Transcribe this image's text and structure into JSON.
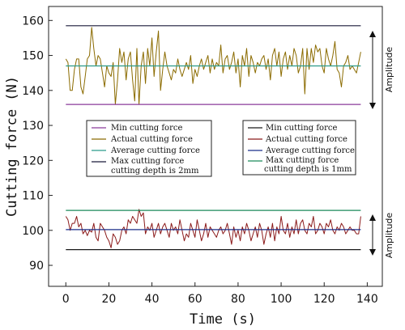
{
  "chart_data": {
    "type": "line",
    "xlabel": "Time (s)",
    "ylabel": "Cutting force (N)",
    "xlim": [
      -8,
      147
    ],
    "ylim": [
      84,
      164
    ],
    "xticks": [
      0,
      20,
      40,
      60,
      80,
      100,
      120,
      140
    ],
    "yticks": [
      90,
      100,
      110,
      120,
      130,
      140,
      150,
      160
    ],
    "amplitude_label": "Amplitude",
    "colors": {
      "actual_2mm": "#8b6b00",
      "actual_1mm": "#8b1a1a",
      "average_2mm": "#2a9a8a",
      "average_1mm": "#1a2e8a",
      "max_2mm": "#1a1a3a",
      "max_1mm": "#1a8a5a",
      "min_2mm": "#8a3a9a",
      "min_1mm": "#1a1a1a"
    },
    "legend_2mm": {
      "min": "Min cutting force",
      "actual": "Actual cutting force",
      "average": "Average cutting force",
      "max": "Max cutting force",
      "note": "cutting depth is 2mm"
    },
    "legend_1mm": {
      "min": "Min cutting force",
      "actual": "Actual cutting force",
      "average": "Average cutting force",
      "max": "Max cutting force",
      "note": "cutting depth is 1mm"
    },
    "series": [
      {
        "key": "actual_2mm",
        "x": [
          0,
          1,
          2,
          3,
          4,
          5,
          6,
          7,
          8,
          9,
          10,
          11,
          12,
          13,
          14,
          15,
          16,
          17,
          18,
          19,
          20,
          21,
          22,
          23,
          24,
          25,
          26,
          27,
          28,
          29,
          30,
          31,
          32,
          33,
          34,
          35,
          36,
          37,
          38,
          39,
          40,
          41,
          42,
          43,
          44,
          45,
          46,
          47,
          48,
          49,
          50,
          51,
          52,
          53,
          54,
          55,
          56,
          57,
          58,
          59,
          60,
          61,
          62,
          63,
          64,
          65,
          66,
          67,
          68,
          69,
          70,
          71,
          72,
          73,
          74,
          75,
          76,
          77,
          78,
          79,
          80,
          81,
          82,
          83,
          84,
          85,
          86,
          87,
          88,
          89,
          90,
          91,
          92,
          93,
          94,
          95,
          96,
          97,
          98,
          99,
          100,
          101,
          102,
          103,
          104,
          105,
          106,
          107,
          108,
          109,
          110,
          111,
          112,
          113,
          114,
          115,
          116,
          117,
          118,
          119,
          120,
          121,
          122,
          123,
          124,
          125,
          126,
          127,
          128,
          129,
          130,
          131,
          132,
          133,
          134,
          135,
          136,
          137
        ],
        "values": [
          149,
          148,
          140,
          140,
          146,
          149,
          149,
          141,
          139,
          144,
          149,
          150,
          158,
          152,
          147,
          150,
          149,
          145,
          141,
          147,
          145,
          144,
          148,
          136,
          143,
          152,
          148,
          151,
          143,
          149,
          151,
          143,
          137,
          152,
          136,
          147,
          151,
          142,
          152,
          147,
          155,
          144,
          151,
          157,
          140,
          146,
          151,
          147,
          145,
          143,
          146,
          145,
          149,
          146,
          144,
          146,
          148,
          146,
          150,
          142,
          146,
          144,
          147,
          149,
          146,
          148,
          150,
          145,
          149,
          146,
          148,
          147,
          153,
          145,
          149,
          150,
          146,
          148,
          151,
          145,
          149,
          141,
          150,
          147,
          152,
          144,
          150,
          148,
          145,
          148,
          147,
          149,
          150,
          146,
          149,
          143,
          150,
          152,
          147,
          151,
          144,
          149,
          151,
          146,
          150,
          147,
          152,
          150,
          145,
          147,
          152,
          139,
          152,
          146,
          152,
          148,
          153,
          151,
          152,
          147,
          145,
          152,
          149,
          147,
          150,
          154,
          146,
          145,
          141,
          147,
          148,
          150,
          146,
          147,
          146,
          145,
          148,
          151
        ]
      },
      {
        "key": "actual_1mm",
        "x": [
          0,
          1,
          2,
          3,
          4,
          5,
          6,
          7,
          8,
          9,
          10,
          11,
          12,
          13,
          14,
          15,
          16,
          17,
          18,
          19,
          20,
          21,
          22,
          23,
          24,
          25,
          26,
          27,
          28,
          29,
          30,
          31,
          32,
          33,
          34,
          35,
          36,
          37,
          38,
          39,
          40,
          41,
          42,
          43,
          44,
          45,
          46,
          47,
          48,
          49,
          50,
          51,
          52,
          53,
          54,
          55,
          56,
          57,
          58,
          59,
          60,
          61,
          62,
          63,
          64,
          65,
          66,
          67,
          68,
          69,
          70,
          71,
          72,
          73,
          74,
          75,
          76,
          77,
          78,
          79,
          80,
          81,
          82,
          83,
          84,
          85,
          86,
          87,
          88,
          89,
          90,
          91,
          92,
          93,
          94,
          95,
          96,
          97,
          98,
          99,
          100,
          101,
          102,
          103,
          104,
          105,
          106,
          107,
          108,
          109,
          110,
          111,
          112,
          113,
          114,
          115,
          116,
          117,
          118,
          119,
          120,
          121,
          122,
          123,
          124,
          125,
          126,
          127,
          128,
          129,
          130,
          131,
          132,
          133,
          134,
          135,
          136,
          137
        ],
        "values": [
          104,
          103,
          100,
          102,
          102,
          104,
          101,
          102,
          99,
          100,
          98.5,
          100,
          99.5,
          102,
          98,
          97,
          102,
          101,
          100,
          98,
          97,
          95,
          99,
          98,
          96,
          97,
          100,
          101,
          99,
          103,
          102,
          104,
          103,
          102,
          106,
          104,
          105,
          99,
          101,
          100,
          102,
          98,
          100,
          102,
          99,
          101,
          102,
          100,
          98,
          102,
          100,
          101,
          99,
          103,
          100,
          97,
          99,
          98,
          102,
          100,
          98,
          103,
          100,
          97,
          99,
          102,
          98,
          101,
          100,
          99,
          98,
          100,
          101,
          99,
          100,
          102,
          99,
          96,
          101,
          98,
          100,
          97,
          101,
          99,
          102,
          100,
          97,
          99,
          101,
          98,
          102,
          100,
          96,
          99,
          101,
          98,
          102,
          97,
          101,
          99,
          104,
          100,
          99,
          102,
          98,
          101,
          99,
          103,
          99,
          102,
          103,
          100,
          99,
          102,
          101,
          104,
          99,
          100,
          102,
          101,
          99,
          102,
          101,
          103,
          100,
          99,
          101,
          100,
          102,
          101,
          99,
          100,
          101,
          100,
          100,
          99,
          99,
          104
        ]
      },
      {
        "key": "max_2mm",
        "x": [
          0,
          137
        ],
        "values": [
          158.5,
          158.5
        ]
      },
      {
        "key": "average_2mm",
        "x": [
          0,
          137
        ],
        "values": [
          147,
          147
        ]
      },
      {
        "key": "min_2mm",
        "x": [
          0,
          137
        ],
        "values": [
          136,
          136
        ]
      },
      {
        "key": "max_1mm",
        "x": [
          0,
          137
        ],
        "values": [
          105.7,
          105.7
        ]
      },
      {
        "key": "average_1mm",
        "x": [
          0,
          137
        ],
        "values": [
          100.2,
          100.2
        ]
      },
      {
        "key": "min_1mm",
        "x": [
          0,
          137
        ],
        "values": [
          94.5,
          94.5
        ]
      }
    ]
  }
}
